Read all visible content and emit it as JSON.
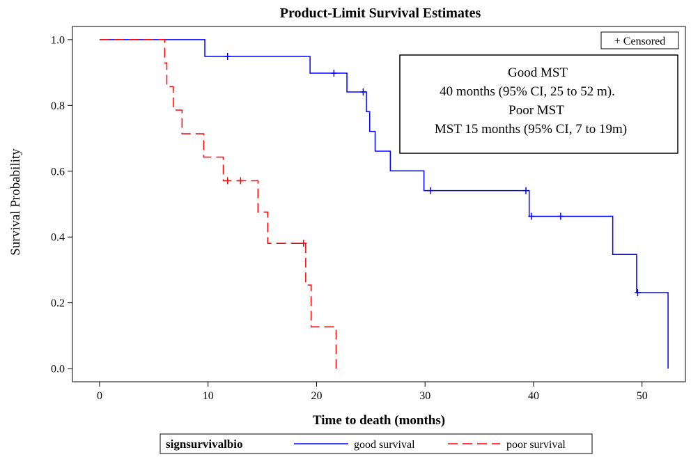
{
  "chart_data": {
    "type": "line",
    "subtype": "kaplan-meier step",
    "title": "Product-Limit Survival Estimates",
    "xlabel": "Time to death (months)",
    "ylabel": "Survival Probability",
    "xlim": [
      -2.5,
      54
    ],
    "ylim": [
      -0.04,
      1.04
    ],
    "xticks": [
      0,
      10,
      20,
      30,
      40,
      50
    ],
    "xtick_labels": [
      "0",
      "10",
      "20",
      "30",
      "40",
      "50"
    ],
    "yticks": [
      0.0,
      0.2,
      0.4,
      0.6,
      0.8,
      1.0
    ],
    "ytick_labels": [
      "0.0",
      "0.2",
      "0.4",
      "0.6",
      "0.8",
      "1.0"
    ],
    "grid": false,
    "censored_legend": "+ Censored",
    "annotation_lines": [
      "Good MST",
      "40 months (95% CI, 25 to 52 m).",
      "Poor MST",
      "MST 15 months (95% CI, 7 to 19m)"
    ],
    "legend_title": "signsurvivalbio",
    "series": [
      {
        "name": "good survival",
        "color": "#0000ff",
        "dash": "solid",
        "steps": [
          [
            0,
            1.0
          ],
          [
            9.7,
            0.949
          ],
          [
            19.4,
            0.898
          ],
          [
            22.8,
            0.841
          ],
          [
            24.6,
            0.781
          ],
          [
            24.9,
            0.721
          ],
          [
            25.4,
            0.661
          ],
          [
            26.8,
            0.601
          ],
          [
            29.9,
            0.541
          ],
          [
            39.6,
            0.463
          ],
          [
            47.3,
            0.347
          ],
          [
            49.5,
            0.231
          ],
          [
            52.4,
            0.0
          ]
        ],
        "end_time": 52.4,
        "censored": [
          [
            11.8,
            0.949
          ],
          [
            21.6,
            0.898
          ],
          [
            24.3,
            0.841
          ],
          [
            30.5,
            0.541
          ],
          [
            39.3,
            0.541
          ],
          [
            39.8,
            0.463
          ],
          [
            42.5,
            0.463
          ],
          [
            49.6,
            0.231
          ]
        ]
      },
      {
        "name": "poor survival",
        "color": "#ff0000",
        "dash": "dashed",
        "steps": [
          [
            0,
            1.0
          ],
          [
            6.0,
            0.929
          ],
          [
            6.2,
            0.857
          ],
          [
            6.8,
            0.786
          ],
          [
            7.6,
            0.714
          ],
          [
            9.6,
            0.643
          ],
          [
            11.4,
            0.571
          ],
          [
            14.6,
            0.476
          ],
          [
            15.5,
            0.381
          ],
          [
            19.0,
            0.254
          ],
          [
            19.5,
            0.127
          ],
          [
            21.8,
            0.0
          ]
        ],
        "end_time": 21.8,
        "censored": [
          [
            11.8,
            0.571
          ],
          [
            13.0,
            0.571
          ],
          [
            18.8,
            0.381
          ]
        ]
      }
    ]
  }
}
